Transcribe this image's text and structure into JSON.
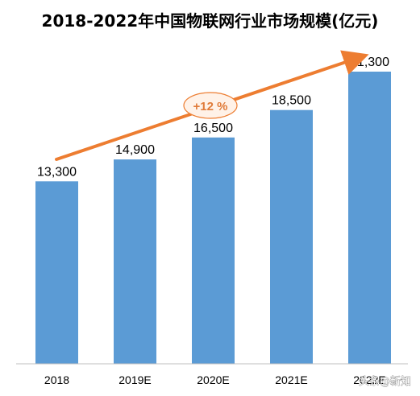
{
  "chart_data": {
    "type": "bar",
    "title": "2018-2022年中国物联网行业市场规模(亿元)",
    "categories": [
      "2018",
      "2019E",
      "2020E",
      "2021E",
      "2022E"
    ],
    "values": [
      13300,
      14900,
      16500,
      18500,
      21300
    ],
    "value_labels": [
      "13,300",
      "14,900",
      "16,500",
      "18,500",
      "21,300"
    ],
    "ylim": [
      0,
      24000
    ],
    "grid": false,
    "legend": "none",
    "annotations": [
      {
        "type": "trend-arrow",
        "label": "+12 %"
      }
    ]
  },
  "colors": {
    "bar": "#5B9BD5",
    "arrow": "#ED7D31",
    "axis": "#BFBFBF",
    "ellipse_fill": "#FFF2E8"
  },
  "watermark": "头条@新知"
}
